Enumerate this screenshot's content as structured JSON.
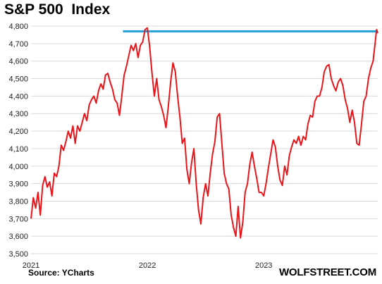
{
  "title": "S&P 500  Index",
  "source": "Source: YCharts",
  "brand": "WOLFSTREET.COM",
  "colors": {
    "series": "#e8161b",
    "reference_line": "#2aa3dc",
    "grid": "#d9d9d9"
  },
  "chart_data": {
    "type": "line",
    "title": "S&P 500  Index",
    "xlabel": "",
    "ylabel": "",
    "xlim": [
      2021.0,
      2023.98
    ],
    "ylim": [
      3500,
      4800
    ],
    "y_ticks": [
      3500,
      3600,
      3700,
      3800,
      3900,
      4000,
      4100,
      4200,
      4300,
      4400,
      4500,
      4600,
      4700,
      4800
    ],
    "y_tick_labels": [
      "3,500",
      "3,600",
      "3,700",
      "3,800",
      "3,900",
      "4,000",
      "4,100",
      "4,200",
      "4,300",
      "4,400",
      "4,500",
      "4,600",
      "4,700",
      "4,800"
    ],
    "x_ticks": [
      {
        "value": 2021,
        "label": "2021"
      },
      {
        "value": 2022,
        "label": "2022"
      },
      {
        "value": 2023,
        "label": "2023"
      }
    ],
    "grid": "horizontal",
    "reference_line": {
      "y": 4770,
      "x_start": 2021.79,
      "x_end": 2023.98
    },
    "series": [
      {
        "points": [
          [
            2021.0,
            3700
          ],
          [
            2021.02,
            3820
          ],
          [
            2021.04,
            3760
          ],
          [
            2021.06,
            3850
          ],
          [
            2021.08,
            3720
          ],
          [
            2021.1,
            3890
          ],
          [
            2021.12,
            3940
          ],
          [
            2021.14,
            3880
          ],
          [
            2021.16,
            3910
          ],
          [
            2021.18,
            3830
          ],
          [
            2021.2,
            3960
          ],
          [
            2021.22,
            3940
          ],
          [
            2021.24,
            4000
          ],
          [
            2021.26,
            4120
          ],
          [
            2021.28,
            4090
          ],
          [
            2021.3,
            4140
          ],
          [
            2021.32,
            4200
          ],
          [
            2021.34,
            4160
          ],
          [
            2021.36,
            4230
          ],
          [
            2021.38,
            4130
          ],
          [
            2021.4,
            4230
          ],
          [
            2021.42,
            4200
          ],
          [
            2021.44,
            4250
          ],
          [
            2021.46,
            4300
          ],
          [
            2021.48,
            4260
          ],
          [
            2021.5,
            4350
          ],
          [
            2021.52,
            4380
          ],
          [
            2021.54,
            4400
          ],
          [
            2021.56,
            4360
          ],
          [
            2021.58,
            4430
          ],
          [
            2021.6,
            4470
          ],
          [
            2021.62,
            4440
          ],
          [
            2021.64,
            4520
          ],
          [
            2021.66,
            4530
          ],
          [
            2021.68,
            4480
          ],
          [
            2021.7,
            4440
          ],
          [
            2021.72,
            4380
          ],
          [
            2021.74,
            4360
          ],
          [
            2021.76,
            4290
          ],
          [
            2021.78,
            4400
          ],
          [
            2021.8,
            4520
          ],
          [
            2021.82,
            4570
          ],
          [
            2021.84,
            4630
          ],
          [
            2021.86,
            4690
          ],
          [
            2021.88,
            4660
          ],
          [
            2021.9,
            4700
          ],
          [
            2021.92,
            4620
          ],
          [
            2021.94,
            4690
          ],
          [
            2021.96,
            4710
          ],
          [
            2021.98,
            4780
          ],
          [
            2022.0,
            4790
          ],
          [
            2022.02,
            4680
          ],
          [
            2022.04,
            4530
          ],
          [
            2022.06,
            4400
          ],
          [
            2022.08,
            4500
          ],
          [
            2022.1,
            4380
          ],
          [
            2022.12,
            4340
          ],
          [
            2022.14,
            4290
          ],
          [
            2022.16,
            4220
          ],
          [
            2022.18,
            4340
          ],
          [
            2022.2,
            4480
          ],
          [
            2022.22,
            4590
          ],
          [
            2022.24,
            4540
          ],
          [
            2022.26,
            4400
          ],
          [
            2022.28,
            4280
          ],
          [
            2022.3,
            4130
          ],
          [
            2022.32,
            4160
          ],
          [
            2022.34,
            3980
          ],
          [
            2022.36,
            3900
          ],
          [
            2022.38,
            4020
          ],
          [
            2022.4,
            4100
          ],
          [
            2022.42,
            3900
          ],
          [
            2022.44,
            3750
          ],
          [
            2022.46,
            3670
          ],
          [
            2022.48,
            3820
          ],
          [
            2022.5,
            3900
          ],
          [
            2022.52,
            3830
          ],
          [
            2022.54,
            3960
          ],
          [
            2022.56,
            4070
          ],
          [
            2022.58,
            4140
          ],
          [
            2022.6,
            4280
          ],
          [
            2022.62,
            4300
          ],
          [
            2022.64,
            4130
          ],
          [
            2022.66,
            3960
          ],
          [
            2022.68,
            3900
          ],
          [
            2022.7,
            3870
          ],
          [
            2022.72,
            3720
          ],
          [
            2022.74,
            3650
          ],
          [
            2022.76,
            3600
          ],
          [
            2022.78,
            3770
          ],
          [
            2022.8,
            3590
          ],
          [
            2022.82,
            3680
          ],
          [
            2022.84,
            3850
          ],
          [
            2022.86,
            3900
          ],
          [
            2022.88,
            4010
          ],
          [
            2022.9,
            4080
          ],
          [
            2022.92,
            4000
          ],
          [
            2022.94,
            3930
          ],
          [
            2022.96,
            3850
          ],
          [
            2022.98,
            3850
          ],
          [
            2023.0,
            3830
          ],
          [
            2023.02,
            3900
          ],
          [
            2023.04,
            3990
          ],
          [
            2023.06,
            4070
          ],
          [
            2023.08,
            4150
          ],
          [
            2023.1,
            4110
          ],
          [
            2023.12,
            4000
          ],
          [
            2023.14,
            3920
          ],
          [
            2023.16,
            3890
          ],
          [
            2023.18,
            4000
          ],
          [
            2023.2,
            3950
          ],
          [
            2023.22,
            4060
          ],
          [
            2023.24,
            4110
          ],
          [
            2023.26,
            4150
          ],
          [
            2023.28,
            4130
          ],
          [
            2023.3,
            4170
          ],
          [
            2023.32,
            4120
          ],
          [
            2023.34,
            4170
          ],
          [
            2023.36,
            4150
          ],
          [
            2023.38,
            4240
          ],
          [
            2023.4,
            4290
          ],
          [
            2023.42,
            4280
          ],
          [
            2023.44,
            4370
          ],
          [
            2023.46,
            4400
          ],
          [
            2023.48,
            4400
          ],
          [
            2023.5,
            4450
          ],
          [
            2023.52,
            4540
          ],
          [
            2023.54,
            4570
          ],
          [
            2023.56,
            4580
          ],
          [
            2023.58,
            4500
          ],
          [
            2023.6,
            4460
          ],
          [
            2023.62,
            4430
          ],
          [
            2023.64,
            4480
          ],
          [
            2023.66,
            4500
          ],
          [
            2023.68,
            4460
          ],
          [
            2023.7,
            4380
          ],
          [
            2023.72,
            4330
          ],
          [
            2023.74,
            4250
          ],
          [
            2023.76,
            4320
          ],
          [
            2023.78,
            4250
          ],
          [
            2023.8,
            4130
          ],
          [
            2023.82,
            4120
          ],
          [
            2023.84,
            4240
          ],
          [
            2023.86,
            4370
          ],
          [
            2023.88,
            4400
          ],
          [
            2023.9,
            4500
          ],
          [
            2023.92,
            4560
          ],
          [
            2023.94,
            4600
          ],
          [
            2023.96,
            4720
          ],
          [
            2023.97,
            4780
          ],
          [
            2023.98,
            4760
          ]
        ]
      }
    ]
  }
}
